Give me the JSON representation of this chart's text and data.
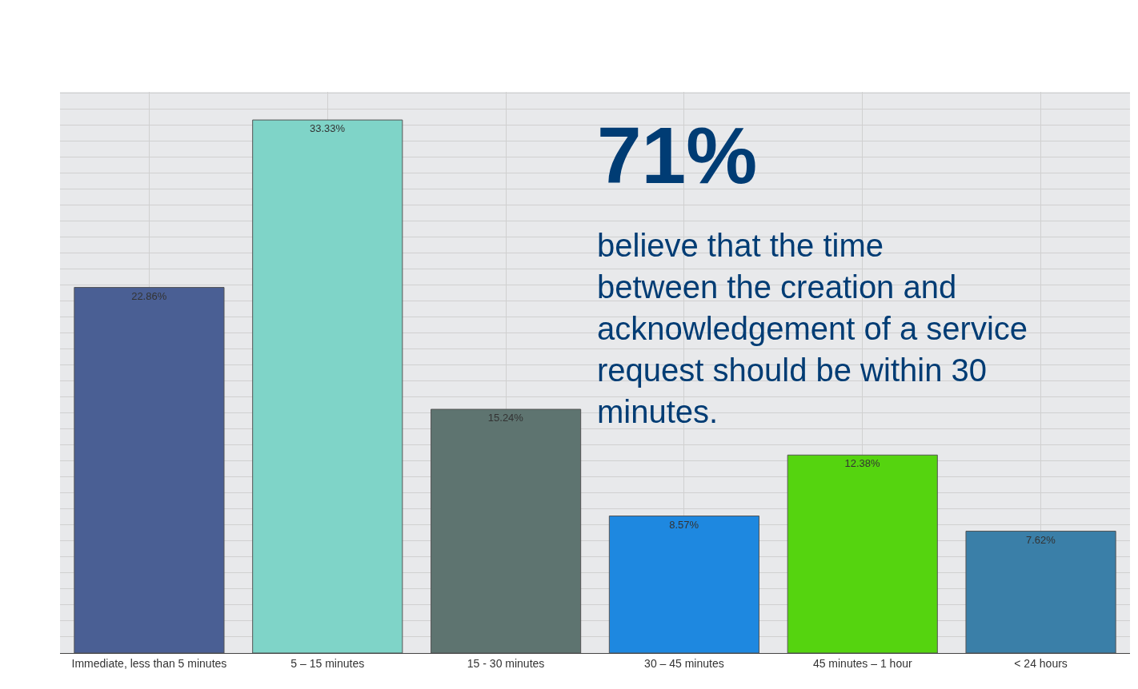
{
  "chart_data": {
    "type": "bar",
    "categories": [
      "Immediate, less than 5 minutes",
      "5 – 15 minutes",
      "15 - 30 minutes",
      "30 – 45 minutes",
      "45 minutes – 1 hour",
      "< 24 hours"
    ],
    "values": [
      22.86,
      33.33,
      15.24,
      8.57,
      12.38,
      7.62
    ],
    "value_labels": [
      "22.86%",
      "33.33%",
      "15.24%",
      "8.57%",
      "12.38%",
      "7.62%"
    ],
    "colors": [
      "#4a5f94",
      "#7fd4c8",
      "#5e7470",
      "#1e88e0",
      "#55d40f",
      "#3a7fa8"
    ],
    "grid": true,
    "annotations": [
      "71%",
      "believe that the time between the creation and acknowledgement of a service request should be within 30 minutes."
    ]
  }
}
